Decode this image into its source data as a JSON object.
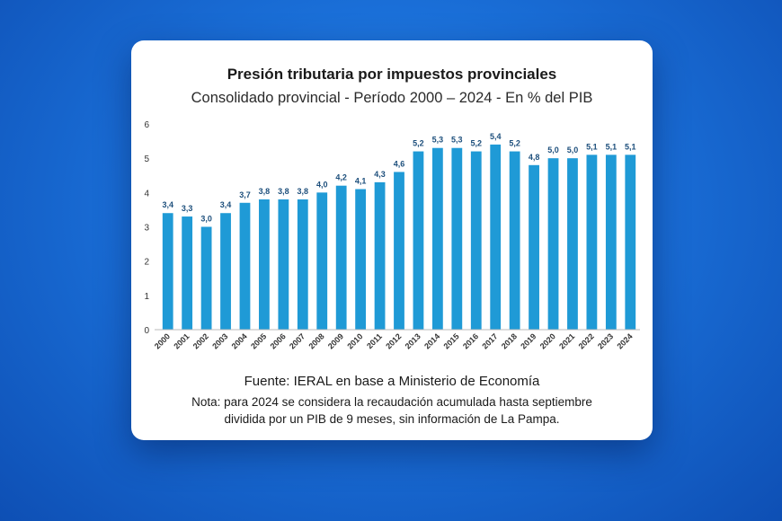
{
  "chart_data": {
    "type": "bar",
    "title": "Presión tributaria por impuestos provinciales",
    "subtitle": "Consolidado provincial - Período 2000 – 2024 - En % del PIB",
    "categories": [
      "2000",
      "2001",
      "2002",
      "2003",
      "2004",
      "2005",
      "2006",
      "2007",
      "2008",
      "2009",
      "2010",
      "2011",
      "2012",
      "2013",
      "2014",
      "2015",
      "2016",
      "2017",
      "2018",
      "2019",
      "2020",
      "2021",
      "2022",
      "2023",
      "2024"
    ],
    "values": [
      3.4,
      3.3,
      3.0,
      3.4,
      3.7,
      3.8,
      3.8,
      3.8,
      4.0,
      4.2,
      4.1,
      4.3,
      4.6,
      5.2,
      5.3,
      5.3,
      5.2,
      5.4,
      5.2,
      4.8,
      5.0,
      5.0,
      5.1,
      5.1,
      5.1
    ],
    "labels": [
      "3,4",
      "3,3",
      "3,0",
      "3,4",
      "3,7",
      "3,8",
      "3,8",
      "3,8",
      "4,0",
      "4,2",
      "4,1",
      "4,3",
      "4,6",
      "5,2",
      "5,3",
      "5,3",
      "5,2",
      "5,4",
      "5,2",
      "4,8",
      "5,0",
      "5,0",
      "5,1",
      "5,1",
      "5,1"
    ],
    "ylim": [
      0,
      6
    ],
    "yticks": [
      "0",
      "1",
      "2",
      "3",
      "4",
      "5",
      "6"
    ],
    "xlabel": "",
    "ylabel": "",
    "bar_color": "#1f9ad6",
    "label_color": "#1d4f7c",
    "source": "Fuente: IERAL en base a Ministerio de Economía",
    "note_line1": "Nota: para 2024 se considera la recaudación acumulada hasta septiembre",
    "note_line2": "dividida por un PIB de 9 meses, sin información de La Pampa."
  }
}
